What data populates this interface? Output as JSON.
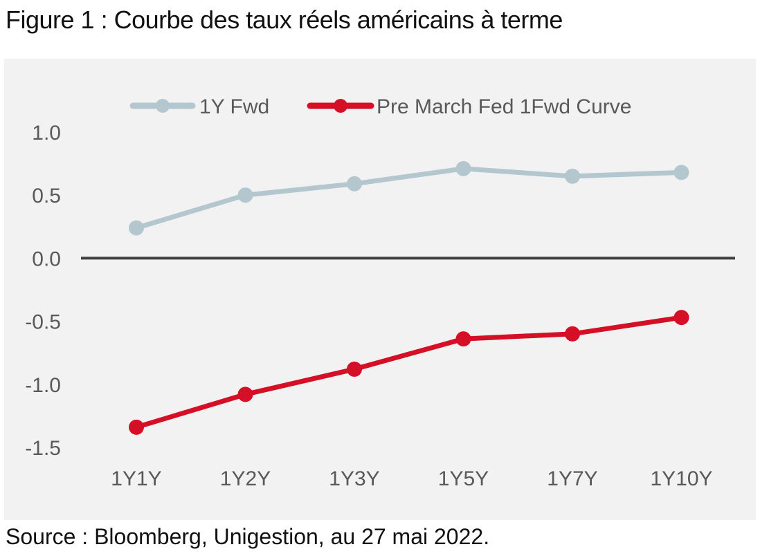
{
  "figure_title": "Figure 1 : Courbe des taux réels américains à terme",
  "source_note": "Source : Bloomberg, Unigestion, au 27 mai 2022.",
  "colors": {
    "series_1": "#b4c7cf",
    "series_2": "#d50f25",
    "zero_line": "#404040",
    "background": "#f2f2f2",
    "tick_text": "#595959"
  },
  "chart_data": {
    "type": "line",
    "title": "",
    "xlabel": "",
    "ylabel": "",
    "categories": [
      "1Y1Y",
      "1Y2Y",
      "1Y3Y",
      "1Y5Y",
      "1Y7Y",
      "1Y10Y"
    ],
    "series": [
      {
        "name": "1Y Fwd",
        "values": [
          0.24,
          0.5,
          0.59,
          0.71,
          0.65,
          0.68
        ]
      },
      {
        "name": "Pre March Fed 1Fwd Curve",
        "values": [
          -1.34,
          -1.08,
          -0.88,
          -0.64,
          -0.6,
          -0.47
        ]
      }
    ],
    "ylim": [
      -1.5,
      1.0
    ],
    "yticks": [
      "1.0",
      "0.5",
      "0.0",
      "-0.5",
      "-1.0",
      "-1.5"
    ],
    "grid": false,
    "legend_position": "top"
  }
}
